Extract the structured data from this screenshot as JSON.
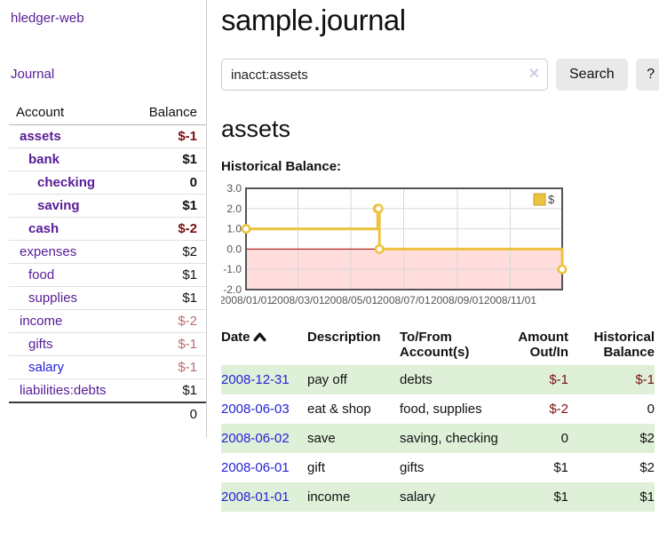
{
  "colors": {
    "link_purple": "#571c96",
    "link_blue": "#2323d6",
    "negative_strong": "#7c1013",
    "negative_muted": "#b4706e",
    "row_green": "#dff0d8",
    "series_yellow": "#edc240",
    "negative_region_pink": "#ffdddd",
    "zero_line_red": "#aa0000",
    "grid_gray": "#d8d8d8",
    "chart_border": "#545454"
  },
  "sidebar": {
    "brand": "hledger-web",
    "nav_journal": "Journal",
    "accounts_table": {
      "headers": {
        "account": "Account",
        "balance": "Balance"
      },
      "rows": [
        {
          "name": "assets",
          "indent": 1,
          "balance": "$-1",
          "bold": true,
          "neg": "strong",
          "link": "purple"
        },
        {
          "name": "bank",
          "indent": 2,
          "balance": "$1",
          "bold": true,
          "neg": "",
          "link": "purple"
        },
        {
          "name": "checking",
          "indent": 3,
          "balance": "0",
          "bold": true,
          "neg": "",
          "link": "purple"
        },
        {
          "name": "saving",
          "indent": 3,
          "balance": "$1",
          "bold": true,
          "neg": "",
          "link": "purple"
        },
        {
          "name": "cash",
          "indent": 2,
          "balance": "$-2",
          "bold": true,
          "neg": "strong",
          "link": "purple"
        },
        {
          "name": "expenses",
          "indent": 1,
          "balance": "$2",
          "bold": false,
          "neg": "",
          "link": "purple"
        },
        {
          "name": "food",
          "indent": 2,
          "balance": "$1",
          "bold": false,
          "neg": "",
          "link": "purple"
        },
        {
          "name": "supplies",
          "indent": 2,
          "balance": "$1",
          "bold": false,
          "neg": "",
          "link": "purple"
        },
        {
          "name": "income",
          "indent": 1,
          "balance": "$-2",
          "bold": false,
          "neg": "muted",
          "link": "purple"
        },
        {
          "name": "gifts",
          "indent": 2,
          "balance": "$-1",
          "bold": false,
          "neg": "muted",
          "link": "purple"
        },
        {
          "name": "salary",
          "indent": 2,
          "balance": "$-1",
          "bold": false,
          "neg": "muted",
          "link": "blue"
        },
        {
          "name": "liabilities:debts",
          "indent": 1,
          "balance": "$1",
          "bold": false,
          "neg": "",
          "link": "purple"
        }
      ],
      "total": "0"
    }
  },
  "main": {
    "title": "sample.journal",
    "search": {
      "value": "inacct:assets",
      "clear_icon": "✕",
      "button_label": "Search",
      "help_label": "?"
    },
    "account_heading": "assets",
    "chart_label": "Historical Balance:",
    "register": {
      "headers": {
        "date": "Date",
        "description": "Description",
        "tofrom": "To/From Account(s)",
        "amount": "Amount Out/In",
        "balance": "Historical Balance"
      },
      "rows": [
        {
          "date": "2008-12-31",
          "description": "pay off",
          "accounts": "debts",
          "amount": "$-1",
          "amount_neg": true,
          "balance": "$-1",
          "balance_neg": true,
          "shaded": true
        },
        {
          "date": "2008-06-03",
          "description": "eat & shop",
          "accounts": "food, supplies",
          "amount": "$-2",
          "amount_neg": true,
          "balance": "0",
          "balance_neg": false,
          "shaded": false
        },
        {
          "date": "2008-06-02",
          "description": "save",
          "accounts": "saving, checking",
          "amount": "0",
          "amount_neg": false,
          "balance": "$2",
          "balance_neg": false,
          "shaded": true
        },
        {
          "date": "2008-06-01",
          "description": "gift",
          "accounts": "gifts",
          "amount": "$1",
          "amount_neg": false,
          "balance": "$2",
          "balance_neg": false,
          "shaded": false
        },
        {
          "date": "2008-01-01",
          "description": "income",
          "accounts": "salary",
          "amount": "$1",
          "amount_neg": false,
          "balance": "$1",
          "balance_neg": false,
          "shaded": true
        }
      ]
    }
  },
  "chart_data": {
    "type": "line",
    "style": "steps",
    "title": "Historical Balance:",
    "legend": {
      "label": "$",
      "position": "top-right"
    },
    "series": [
      {
        "name": "$",
        "color": "#edc240",
        "points": [
          [
            "2008/01/01",
            1
          ],
          [
            "2008/06/01",
            2
          ],
          [
            "2008/06/02",
            2
          ],
          [
            "2008/06/03",
            0
          ],
          [
            "2008/12/31",
            -1
          ]
        ]
      }
    ],
    "xlim": [
      "2008/01/01",
      "2008/12/31"
    ],
    "ylim": [
      -2.0,
      3.0
    ],
    "x_ticks": [
      "2008/01/01",
      "2008/03/01",
      "2008/05/01",
      "2008/07/01",
      "2008/09/01",
      "2008/11/01"
    ],
    "y_ticks": [
      3.0,
      2.0,
      1.0,
      0.0,
      -1.0,
      -2.0
    ],
    "grid": true,
    "negative_region_shaded": true
  }
}
